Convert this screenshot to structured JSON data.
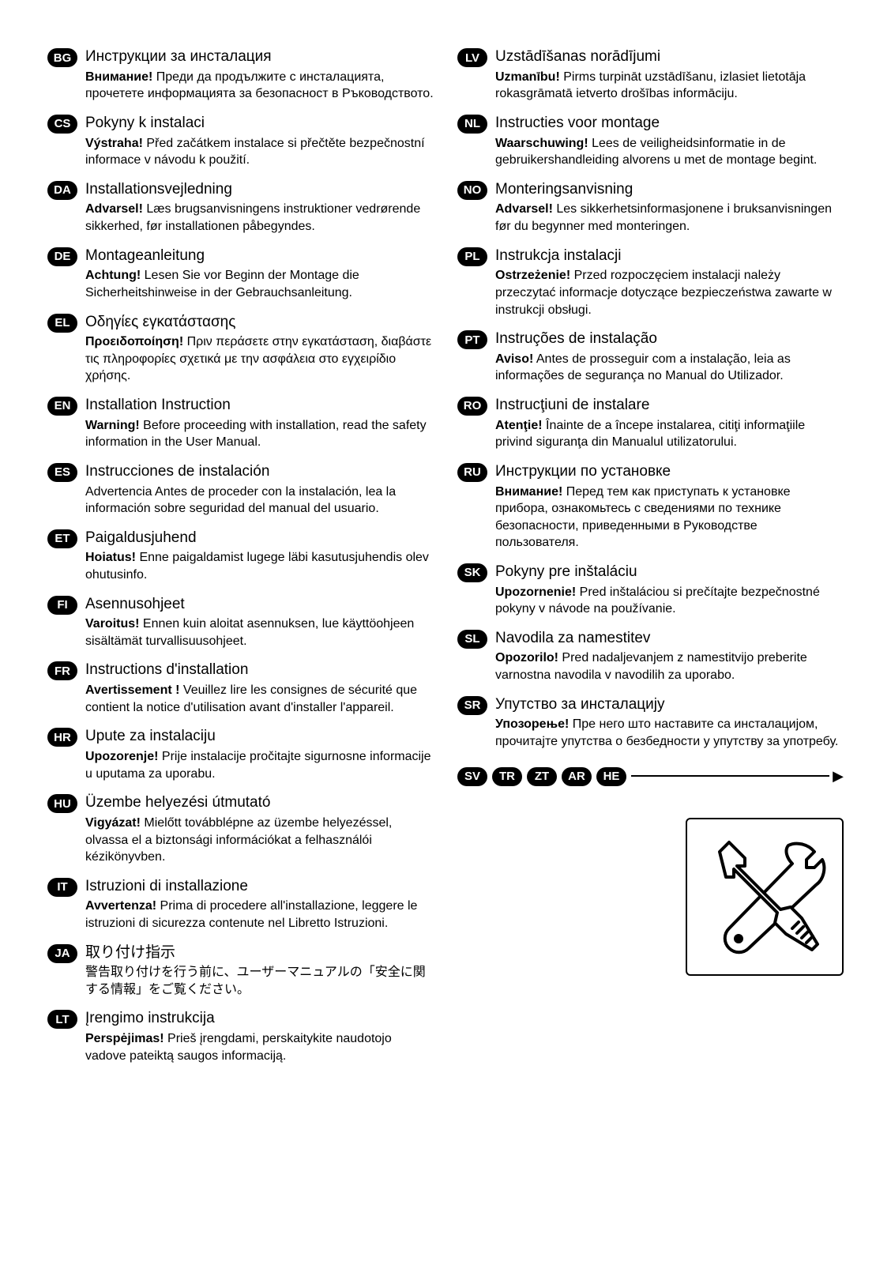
{
  "left_entries": [
    {
      "code": "BG",
      "title": "Инструкции за инсталация",
      "warning_label": "Внимание!",
      "warning_text": " Преди да продължите с инсталацията, прочетете информацията за безопасност в Ръководството."
    },
    {
      "code": "CS",
      "title": "Pokyny k instalaci",
      "warning_label": "Výstraha!",
      "warning_text": " Před začátkem instalace si přečtěte bezpečnostní informace v návodu k použití."
    },
    {
      "code": "DA",
      "title": "Installationsvejledning",
      "warning_label": "Advarsel!",
      "warning_text": " Læs brugsanvisningens instruktioner vedrørende sikkerhed, før installationen påbegyndes."
    },
    {
      "code": "DE",
      "title": "Montageanleitung",
      "warning_label": "Achtung!",
      "warning_text": " Lesen Sie vor Beginn der Montage die Sicherheitshinweise in der Gebrauchsanleitung."
    },
    {
      "code": "EL",
      "title": "Οδηγίες εγκατάστασης",
      "warning_label": "Προειδοποίηση!",
      "warning_text": " Πριν περάσετε στην εγκατάσταση, διαβάστε τις πληροφορίες σχετικά με την ασφάλεια στο εγχειρίδιο χρήσης."
    },
    {
      "code": "EN",
      "title": "Installation Instruction",
      "warning_label": "Warning!",
      "warning_text": " Before proceeding with installation, read the safety information in the User Manual."
    },
    {
      "code": "ES",
      "title": "Instrucciones de instalación",
      "warning_label": "",
      "warning_text": "Advertencia Antes de proceder con la instalación, lea la información sobre seguridad del manual del usuario."
    },
    {
      "code": "ET",
      "title": "Paigaldusjuhend",
      "warning_label": "Hoiatus!",
      "warning_text": " Enne paigaldamist lugege läbi kasutusjuhendis olev ohutusinfo."
    },
    {
      "code": "FI",
      "title": "Asennusohjeet",
      "warning_label": "Varoitus!",
      "warning_text": " Ennen kuin aloitat asennuksen, lue käyttöohjeen sisältämät turvallisuusohjeet."
    },
    {
      "code": "FR",
      "title": "Instructions d'installation",
      "warning_label": "Avertissement !",
      "warning_text": " Veuillez lire les consignes de sécurité que contient la notice d'utilisation avant d'installer l'appareil."
    },
    {
      "code": "HR",
      "title": "Upute za instalaciju",
      "warning_label": "Upozorenje!",
      "warning_text": " Prije instalacije pročitajte sigurnosne informacije u uputama za uporabu."
    },
    {
      "code": "HU",
      "title": "Üzembe helyezési útmutató",
      "warning_label": "Vigyázat!",
      "warning_text": " Mielőtt továbblépne az üzembe helyezéssel, olvassa el a biztonsági információkat a felhasználói kézikönyvben."
    },
    {
      "code": "IT",
      "title": "Istruzioni di installazione",
      "warning_label": "Avvertenza!",
      "warning_text": " Prima di procedere all'installazione, leggere le istruzioni di sicurezza contenute nel Libretto Istruzioni."
    },
    {
      "code": "JA",
      "title": "取り付け指示",
      "warning_label": "",
      "warning_text": "警告取り付けを行う前に、ユーザーマニュアルの「安全に関する情報」をご覧ください。"
    },
    {
      "code": "LT",
      "title": "Įrengimo instrukcija",
      "warning_label": "Perspėjimas!",
      "warning_text": " Prieš įrengdami, perskaitykite naudotojo vadove pateiktą saugos informaciją."
    }
  ],
  "right_entries": [
    {
      "code": "LV",
      "title": "Uzstādīšanas norādījumi",
      "warning_label": "Uzmanību!",
      "warning_text": " Pirms turpināt uzstādīšanu, izlasiet lietotāja rokasgrāmatā ietverto drošības informāciju."
    },
    {
      "code": "NL",
      "title": "Instructies voor montage",
      "warning_label": "Waarschuwing!",
      "warning_text": " Lees de veiligheidsinformatie in de gebruikershandleiding alvorens u met de montage begint."
    },
    {
      "code": "NO",
      "title": "Monteringsanvisning",
      "warning_label": "Advarsel!",
      "warning_text": " Les sikkerhetsinformasjonene i bruksanvisningen før du begynner med monteringen."
    },
    {
      "code": "PL",
      "title": "Instrukcja instalacji",
      "warning_label": "Ostrzeżenie!",
      "warning_text": " Przed rozpoczęciem instalacji należy przeczytać informacje dotyczące bezpieczeństwa zawarte w instrukcji obsługi."
    },
    {
      "code": "PT",
      "title": "Instruções de instalação",
      "warning_label": "Aviso!",
      "warning_text": " Antes de prosseguir com a instalação, leia as informações de segurança no Manual do Utilizador."
    },
    {
      "code": "RO",
      "title": "Instrucţiuni de instalare",
      "warning_label": "Atenţie!",
      "warning_text": " Înainte de a începe instalarea, citiţi informaţiile privind siguranţa din Manualul utilizatorului."
    },
    {
      "code": "RU",
      "title": "Инструкции по установке",
      "warning_label": "Внимание!",
      "warning_text": " Перед тем как приступать к установке прибора, ознакомьтесь с сведениями по технике безопасности, приведенными в Руководстве пользователя."
    },
    {
      "code": "SK",
      "title": "Pokyny pre inštaláciu",
      "warning_label": "Upozornenie!",
      "warning_text": " Pred inštaláciou si prečítajte bezpečnostné pokyny v návode na používanie."
    },
    {
      "code": "SL",
      "title": "Navodila za namestitev",
      "warning_label": "Opozorilo!",
      "warning_text": " Pred nadaljevanjem z namestitvijo preberite varnostna navodila v navodilih za uporabo."
    },
    {
      "code": "SR",
      "title": "Упутство за инсталацију",
      "warning_label": "Упозорење!",
      "warning_text": " Пре него што наставите са инсталацијом, прочитајте упутства о безбедности у упутству за употребу."
    }
  ],
  "extra_langs": [
    "SV",
    "TR",
    "ZT",
    "AR",
    "HE"
  ],
  "colors": {
    "badge_bg": "#000000",
    "badge_fg": "#ffffff",
    "text": "#000000",
    "page_bg": "#ffffff"
  },
  "typography": {
    "title_fontsize": 19,
    "body_fontsize": 16,
    "badge_fontsize": 15,
    "font_family": "Arial, Helvetica, sans-serif"
  }
}
